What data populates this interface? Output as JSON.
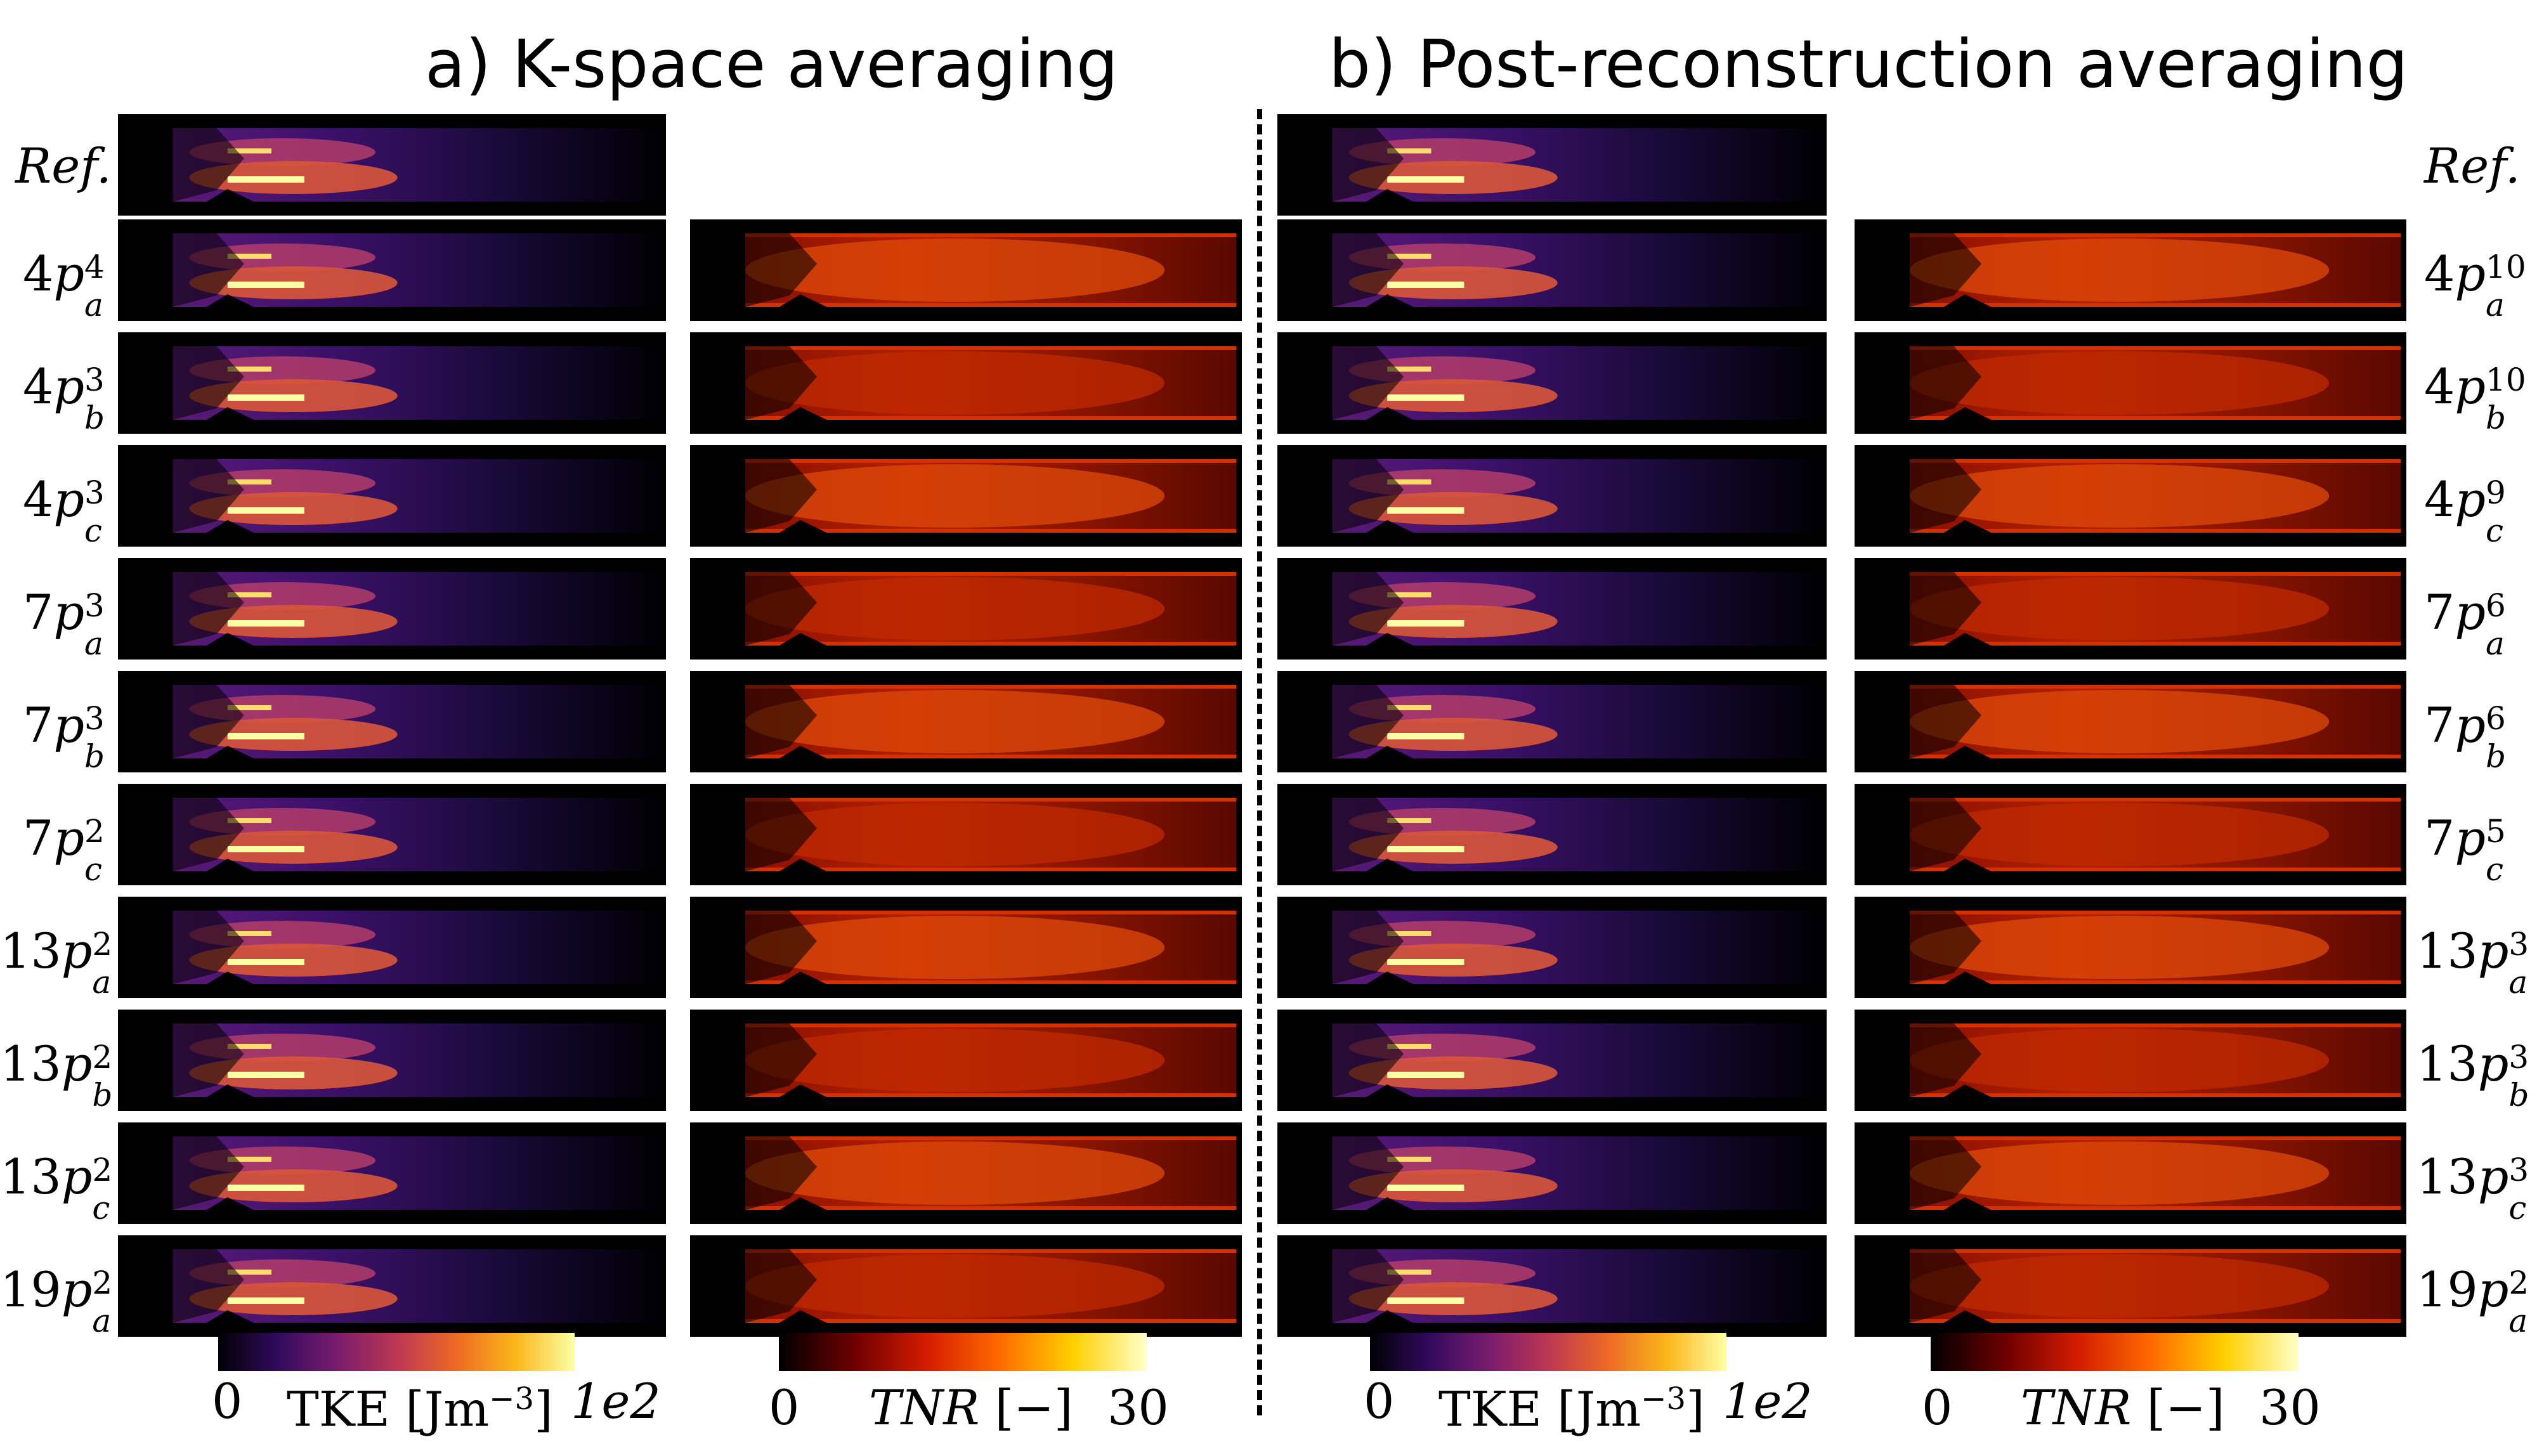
{
  "titles": {
    "a": "a) K-space averaging",
    "b": "b) Post-reconstruction averaging"
  },
  "ref_label": "Ref.",
  "rows_a": [
    {
      "base": "4",
      "sup": "4",
      "sub": "a"
    },
    {
      "base": "4",
      "sup": "3",
      "sub": "b"
    },
    {
      "base": "4",
      "sup": "3",
      "sub": "c"
    },
    {
      "base": "7",
      "sup": "3",
      "sub": "a"
    },
    {
      "base": "7",
      "sup": "3",
      "sub": "b"
    },
    {
      "base": "7",
      "sup": "2",
      "sub": "c"
    },
    {
      "base": "13",
      "sup": "2",
      "sub": "a"
    },
    {
      "base": "13",
      "sup": "2",
      "sub": "b"
    },
    {
      "base": "13",
      "sup": "2",
      "sub": "c"
    },
    {
      "base": "19",
      "sup": "2",
      "sub": "a"
    }
  ],
  "rows_b": [
    {
      "base": "4",
      "sup": "10",
      "sub": "a"
    },
    {
      "base": "4",
      "sup": "10",
      "sub": "b"
    },
    {
      "base": "4",
      "sup": "9",
      "sub": "c"
    },
    {
      "base": "7",
      "sup": "6",
      "sub": "a"
    },
    {
      "base": "7",
      "sup": "6",
      "sub": "b"
    },
    {
      "base": "7",
      "sup": "5",
      "sub": "c"
    },
    {
      "base": "13",
      "sup": "3",
      "sub": "a"
    },
    {
      "base": "13",
      "sup": "3",
      "sub": "b"
    },
    {
      "base": "13",
      "sup": "3",
      "sub": "c"
    },
    {
      "base": "19",
      "sup": "2",
      "sub": "a"
    }
  ],
  "colorbars": {
    "tke": {
      "min": "0",
      "label": "TKE [Jm",
      "exp": "−3",
      "close": "]",
      "max": "1e2"
    },
    "tnr": {
      "min": "0",
      "label": "TNR",
      "unit": "[−]",
      "max": "30"
    }
  },
  "colors": {
    "tke_stops": [
      "#000004",
      "#320a5e",
      "#781c6d",
      "#bc3754",
      "#ed6925",
      "#fbb61a",
      "#fcffa4"
    ],
    "tnr_stops": [
      "#000000",
      "#6b0000",
      "#d41c00",
      "#ff6a00",
      "#ffd000",
      "#ffffc8"
    ]
  }
}
